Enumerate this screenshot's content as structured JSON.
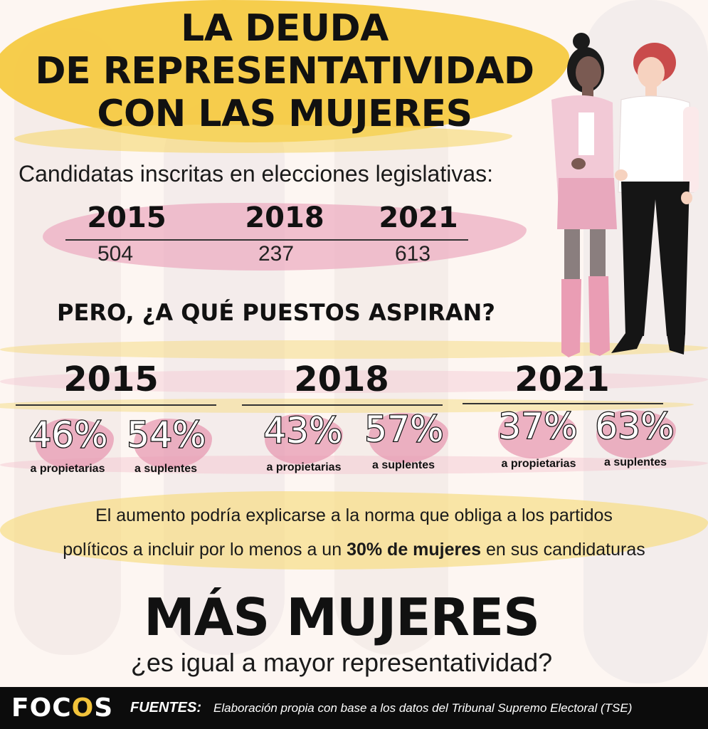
{
  "header": {
    "title_line1": "LA DEUDA",
    "title_line2": "DE REPRESENTATIVIDAD",
    "title_line3": "CON LAS MUJERES"
  },
  "candidates": {
    "label": "Candidatas inscritas en elecciones legislativas:",
    "years": [
      {
        "year": "2015",
        "value": "504"
      },
      {
        "year": "2018",
        "value": "237"
      },
      {
        "year": "2021",
        "value": "613"
      }
    ]
  },
  "question": "PERO, ¿A QUÉ PUESTOS ASPIRAN?",
  "positions": [
    {
      "year": "2015",
      "owners_pct": "46%",
      "owners_label": "a propietarias",
      "subs_pct": "54%",
      "subs_label": "a suplentes"
    },
    {
      "year": "2018",
      "owners_pct": "43%",
      "owners_label": "a propietarias",
      "subs_pct": "57%",
      "subs_label": "a suplentes"
    },
    {
      "year": "2021",
      "owners_pct": "37%",
      "owners_label": "a propietarias",
      "subs_pct": "63%",
      "subs_label": "a suplentes"
    }
  ],
  "note": {
    "line1": "El aumento podría explicarse a la norma que obliga a los partidos",
    "line2_pre": "políticos a incluir por lo menos a un ",
    "line2_bold": "30% de mujeres",
    "line2_post": " en sus candidaturas"
  },
  "closing": {
    "headline": "MÁS MUJERES",
    "question": "¿es igual a mayor representatividad?"
  },
  "footer": {
    "logo_pre": "FOC",
    "logo_o": "O",
    "logo_post": "S",
    "sources_label": "FUENTES:",
    "sources_text": "Elaboración propia con base a los datos del Tribunal Supremo Electoral (TSE)"
  },
  "colors": {
    "yellow": "#f2c33b",
    "pink": "#e9a3bb",
    "dark": "#111111"
  }
}
